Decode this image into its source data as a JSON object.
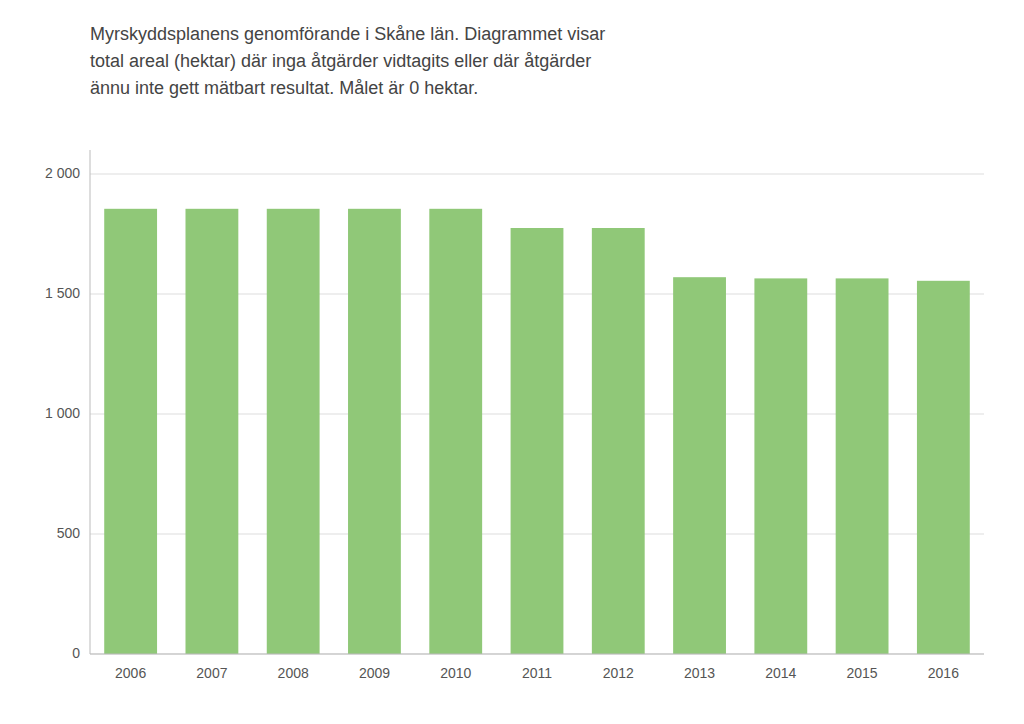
{
  "chart_data": {
    "type": "bar",
    "title": "Myrskyddsplanens genomförande i Skåne län. Diagrammet visar\ntotal areal (hektar) där inga åtgärder vidtagits eller där åtgärder\nännu inte gett mätbart resultat. Målet är 0 hektar.",
    "categories": [
      "2006",
      "2007",
      "2008",
      "2009",
      "2010",
      "2011",
      "2012",
      "2013",
      "2014",
      "2015",
      "2016"
    ],
    "values": [
      1855,
      1855,
      1855,
      1855,
      1855,
      1775,
      1775,
      1570,
      1565,
      1565,
      1555
    ],
    "color": "#90C878",
    "ylim": [
      0,
      2100
    ],
    "yticks": [
      0,
      500,
      {
        "value": 1000,
        "label": "1 000"
      },
      {
        "value": 1500,
        "label": "1 500"
      },
      {
        "value": 2000,
        "label": "2 000"
      }
    ],
    "grid": true
  }
}
